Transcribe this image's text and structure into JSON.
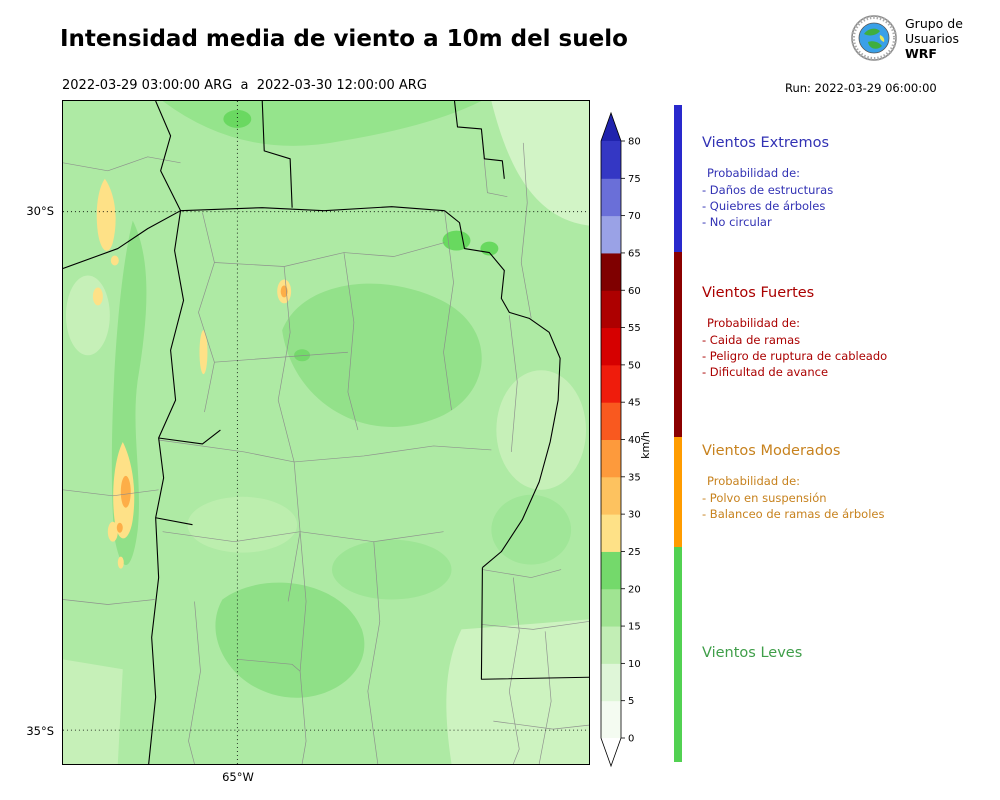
{
  "header": {
    "title": "Intensidad media de viento a 10m del suelo",
    "time_range": "2022-03-29 03:00:00 ARG  a  2022-03-30 12:00:00 ARG",
    "run_label": "Run: 2022-03-29 06:00:00",
    "logo_lines": [
      "Grupo de",
      "Usuarios",
      "WRF"
    ]
  },
  "map": {
    "lat_ticks": [
      "30°S",
      "35°S"
    ],
    "lon_ticks": [
      "65°W"
    ]
  },
  "colorbar": {
    "unit": "km/h",
    "tick_values": [
      0,
      5,
      10,
      15,
      20,
      25,
      30,
      35,
      40,
      45,
      50,
      55,
      60,
      65,
      70,
      75,
      80
    ],
    "segment_colors_bottom_to_top": [
      "#f4fbf1",
      "#dff6d8",
      "#c2eeb5",
      "#a0e492",
      "#74d96b",
      "#fee187",
      "#fdc25f",
      "#fd9a3c",
      "#f9591f",
      "#ef1c0c",
      "#d60000",
      "#ad0000",
      "#7f0000",
      "#9aa2e6",
      "#6a6fd8",
      "#3437c4"
    ],
    "over_color": "#2023ad",
    "under_color": "#ffffff"
  },
  "legend": {
    "categories": [
      {
        "name": "Vientos Extremos",
        "color": "#3232b4",
        "bar_color": "#2929cc",
        "prob_heading": "Probabilidad de:",
        "items": [
          "- Daños de estructuras",
          "- Quiebres de árboles",
          "- No circular"
        ]
      },
      {
        "name": "Vientos Fuertes",
        "color": "#aa0000",
        "bar_color": "#8b0000",
        "prob_heading": "Probabilidad de:",
        "items": [
          "- Caida de ramas",
          "- Peligro de ruptura de cableado",
          "- Dificultad de avance"
        ]
      },
      {
        "name": "Vientos Moderados",
        "color": "#c7821e",
        "bar_color": "#ff9c00",
        "prob_heading": "Probabilidad de:",
        "items": [
          "- Polvo en suspensión",
          "- Balanceo de ramas de árboles"
        ]
      },
      {
        "name": "Vientos Leves",
        "color": "#3f9e49",
        "bar_color": "#52d152",
        "prob_heading": "",
        "items": []
      }
    ]
  },
  "chart_data": {
    "type": "heatmap",
    "title": "Intensidad media de viento a 10m del suelo",
    "subtitle": "2022-03-29 03:00:00 ARG  a  2022-03-30 12:00:00 ARG",
    "run": "Run: 2022-03-29 06:00:00",
    "colorbar_unit": "km/h",
    "colorbar_ticks": [
      0,
      5,
      10,
      15,
      20,
      25,
      30,
      35,
      40,
      45,
      50,
      55,
      60,
      65,
      70,
      75,
      80
    ],
    "lat_gridlines": [
      "30°S",
      "35°S"
    ],
    "lon_gridlines": [
      "65°W"
    ],
    "wind_categories": [
      {
        "label": "Vientos Leves",
        "range_kmh": [
          0,
          25
        ]
      },
      {
        "label": "Vientos Moderados",
        "range_kmh": [
          25,
          40
        ]
      },
      {
        "label": "Vientos Fuertes",
        "range_kmh": [
          40,
          65
        ]
      },
      {
        "label": "Vientos Extremos",
        "range_kmh": [
          65,
          80
        ]
      }
    ],
    "map_summary": "Mostly light winds (5-20 km/h, greens) over central Argentina; isolated moderate-wind patches (25-35 km/h, yellow/orange) along the western sierras"
  }
}
